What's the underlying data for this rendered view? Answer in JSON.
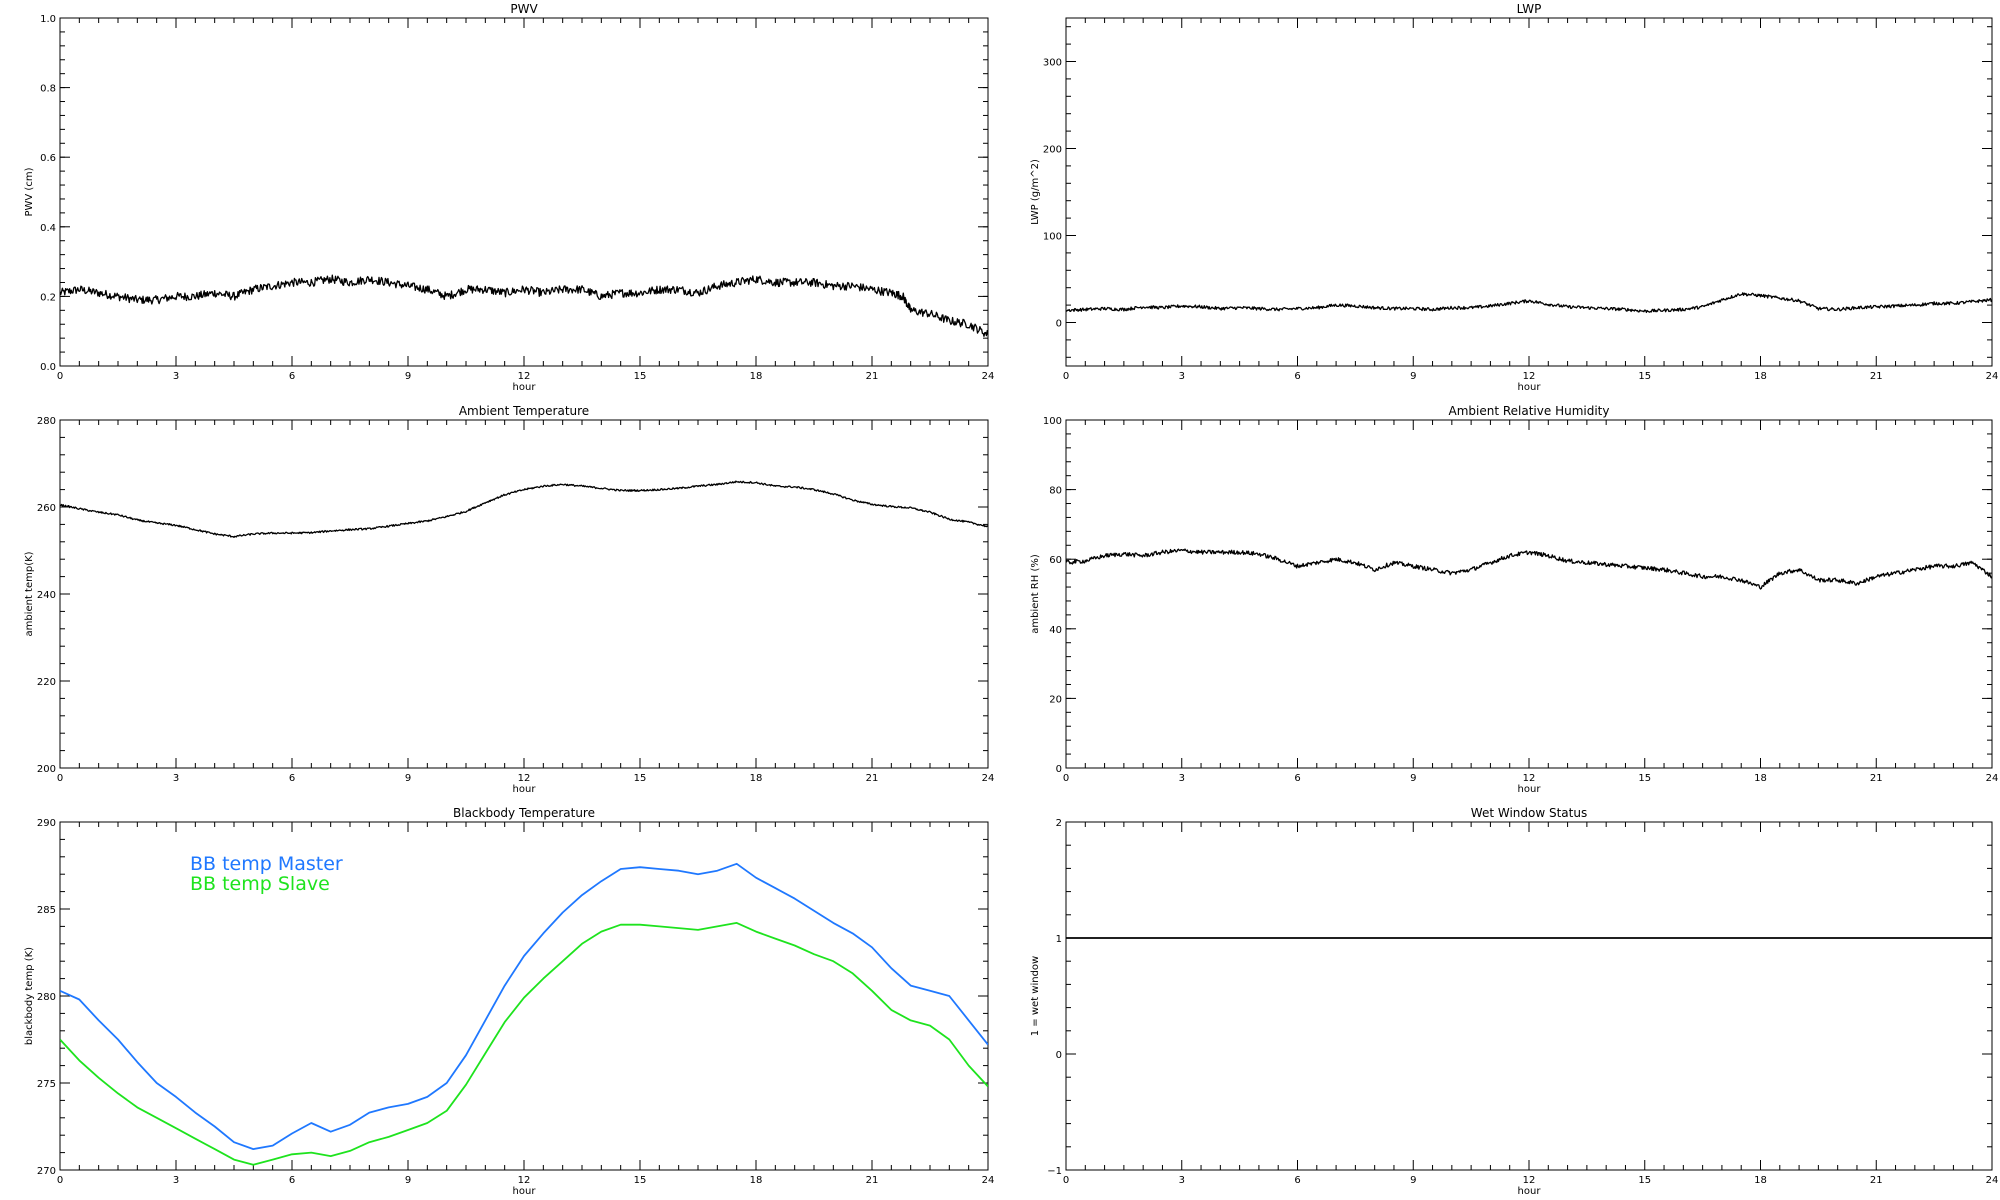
{
  "colors": {
    "background": "#ffffff",
    "axes": "#000000",
    "bb_master": "#1f78ff",
    "bb_slave": "#1ee31e"
  },
  "chart_data": [
    {
      "id": "pwv",
      "type": "line",
      "title": "PWV",
      "xlabel": "hour",
      "ylabel": "PWV (cm)",
      "xlim": [
        0,
        24
      ],
      "ylim": [
        0.0,
        1.0
      ],
      "xticks": [
        0,
        3,
        6,
        9,
        12,
        15,
        18,
        21,
        24
      ],
      "yticks": [
        "0.0",
        "0.2",
        "0.4",
        "0.6",
        "0.8",
        "1.0"
      ],
      "ytick_values": [
        0.0,
        0.2,
        0.4,
        0.6,
        0.8,
        1.0
      ],
      "noise": 0.012,
      "series": [
        {
          "color": "#000000",
          "x": [
            0,
            0.5,
            1,
            1.5,
            2,
            2.5,
            3,
            3.5,
            4,
            4.5,
            5,
            5.5,
            6,
            6.5,
            7,
            7.5,
            8,
            8.5,
            9,
            9.5,
            10,
            10.5,
            11,
            11.5,
            12,
            12.5,
            13,
            13.5,
            14,
            14.5,
            15,
            15.5,
            16,
            16.5,
            17,
            17.5,
            18,
            18.5,
            19,
            19.5,
            20,
            20.5,
            21,
            21.5,
            21.8,
            22,
            22.5,
            23,
            23.5,
            24
          ],
          "y": [
            0.21,
            0.22,
            0.21,
            0.2,
            0.19,
            0.19,
            0.2,
            0.2,
            0.21,
            0.2,
            0.22,
            0.23,
            0.24,
            0.24,
            0.25,
            0.24,
            0.25,
            0.24,
            0.23,
            0.22,
            0.2,
            0.22,
            0.22,
            0.21,
            0.22,
            0.21,
            0.22,
            0.22,
            0.2,
            0.21,
            0.21,
            0.22,
            0.22,
            0.21,
            0.23,
            0.24,
            0.25,
            0.24,
            0.24,
            0.24,
            0.23,
            0.23,
            0.22,
            0.21,
            0.2,
            0.16,
            0.15,
            0.13,
            0.12,
            0.09
          ]
        }
      ]
    },
    {
      "id": "lwp",
      "type": "line",
      "title": "LWP",
      "xlabel": "hour",
      "ylabel": "LWP (g/m^2)",
      "xlim": [
        0,
        24
      ],
      "ylim": [
        -50,
        350
      ],
      "xticks": [
        0,
        3,
        6,
        9,
        12,
        15,
        18,
        21,
        24
      ],
      "yticks": [
        "0",
        "100",
        "200",
        "300"
      ],
      "ytick_values": [
        0,
        100,
        200,
        300
      ],
      "noise": 1.8,
      "series": [
        {
          "color": "#000000",
          "x": [
            0,
            0.5,
            1,
            1.5,
            2,
            2.5,
            3,
            3.5,
            4,
            4.5,
            5,
            5.5,
            6,
            6.5,
            7,
            7.5,
            8,
            8.5,
            9,
            9.5,
            10,
            10.5,
            11,
            11.5,
            12,
            12.5,
            13,
            13.5,
            14,
            14.5,
            15,
            15.5,
            16,
            16.5,
            17,
            17.5,
            18,
            18.5,
            19,
            19.5,
            20,
            20.5,
            21,
            21.5,
            22,
            22.5,
            23,
            23.5,
            24
          ],
          "y": [
            14,
            15,
            16,
            15,
            18,
            17,
            19,
            18,
            16,
            17,
            16,
            15,
            16,
            17,
            20,
            19,
            17,
            16,
            16,
            15,
            17,
            17,
            19,
            22,
            25,
            21,
            18,
            17,
            16,
            15,
            13,
            14,
            15,
            18,
            26,
            33,
            31,
            28,
            25,
            16,
            15,
            17,
            18,
            19,
            20,
            22,
            22,
            24,
            26
          ]
        }
      ]
    },
    {
      "id": "ambient-temp",
      "type": "line",
      "title": "Ambient Temperature",
      "xlabel": "hour",
      "ylabel": "ambient temp(K)",
      "xlim": [
        0,
        24
      ],
      "ylim": [
        200,
        280
      ],
      "xticks": [
        0,
        3,
        6,
        9,
        12,
        15,
        18,
        21,
        24
      ],
      "yticks": [
        "200",
        "220",
        "240",
        "260",
        "280"
      ],
      "ytick_values": [
        200,
        220,
        240,
        260,
        280
      ],
      "noise": 0.2,
      "series": [
        {
          "color": "#000000",
          "x": [
            0,
            0.5,
            1,
            1.5,
            2,
            2.5,
            3,
            3.5,
            4,
            4.5,
            5,
            5.5,
            6,
            6.5,
            7,
            7.5,
            8,
            8.5,
            9,
            9.5,
            10,
            10.5,
            11,
            11.5,
            12,
            12.5,
            13,
            13.5,
            14,
            14.5,
            15,
            15.5,
            16,
            16.5,
            17,
            17.5,
            18,
            18.5,
            19,
            19.5,
            20,
            20.5,
            21,
            21.5,
            22,
            22.5,
            23,
            23.5,
            24
          ],
          "y": [
            260.5,
            259.6,
            258.8,
            258.2,
            257.0,
            256.3,
            255.8,
            254.8,
            253.8,
            253.2,
            253.8,
            254.0,
            254.0,
            254.1,
            254.5,
            254.8,
            255.0,
            255.6,
            256.2,
            256.8,
            257.8,
            259.0,
            261.0,
            262.8,
            264.0,
            264.8,
            265.2,
            264.8,
            264.3,
            263.8,
            263.8,
            264.0,
            264.3,
            264.8,
            265.2,
            265.8,
            265.6,
            264.8,
            264.6,
            264.0,
            263.0,
            261.6,
            260.6,
            260.1,
            259.8,
            258.8,
            257.2,
            256.5,
            255.5
          ]
        }
      ]
    },
    {
      "id": "ambient-rh",
      "type": "line",
      "title": "Ambient Relative Humidity",
      "xlabel": "hour",
      "ylabel": "ambient RH (%)",
      "xlim": [
        0,
        24
      ],
      "ylim": [
        0,
        100
      ],
      "xticks": [
        0,
        3,
        6,
        9,
        12,
        15,
        18,
        21,
        24
      ],
      "yticks": [
        "0",
        "20",
        "40",
        "60",
        "80",
        "100"
      ],
      "ytick_values": [
        0,
        20,
        40,
        60,
        80,
        100
      ],
      "noise": 0.6,
      "series": [
        {
          "color": "#000000",
          "x": [
            0,
            0.5,
            1,
            1.5,
            2,
            2.5,
            3,
            3.5,
            4,
            4.5,
            5,
            5.5,
            6,
            6.5,
            7,
            7.5,
            8,
            8.5,
            9,
            9.5,
            10,
            10.5,
            11,
            11.5,
            12,
            12.5,
            13,
            13.5,
            14,
            14.5,
            15,
            15.5,
            16,
            16.5,
            17,
            17.5,
            18,
            18.5,
            19,
            19.5,
            20,
            20.5,
            21,
            21.5,
            22,
            22.5,
            23,
            23.5,
            24
          ],
          "y": [
            59,
            59.5,
            61,
            61.5,
            61,
            62,
            62.5,
            62,
            62,
            62,
            61.5,
            60,
            58,
            59,
            60,
            59,
            57,
            59,
            58,
            57,
            56,
            57,
            59,
            61,
            62,
            61,
            59.5,
            59,
            58.5,
            58,
            57.5,
            57,
            56,
            55,
            55,
            54,
            52,
            56,
            57,
            54,
            54,
            53,
            55,
            56,
            57,
            58,
            58,
            59,
            55
          ]
        }
      ]
    },
    {
      "id": "blackbody",
      "type": "line",
      "title": "Blackbody Temperature",
      "xlabel": "hour",
      "ylabel": "blackbody temp (K)",
      "xlim": [
        0,
        24
      ],
      "ylim": [
        270,
        290
      ],
      "xticks": [
        0,
        3,
        6,
        9,
        12,
        15,
        18,
        21,
        24
      ],
      "yticks": [
        "270",
        "275",
        "280",
        "285",
        "290"
      ],
      "ytick_values": [
        270,
        275,
        280,
        285,
        290
      ],
      "noise": 0,
      "legend": [
        {
          "label": "BB temp Master",
          "color": "#1f78ff"
        },
        {
          "label": "BB temp Slave",
          "color": "#1ee31e"
        }
      ],
      "series": [
        {
          "name": "BB temp Master",
          "color": "#1f78ff",
          "x": [
            0,
            0.5,
            1,
            1.5,
            2,
            2.5,
            3,
            3.5,
            4,
            4.5,
            5,
            5.5,
            6,
            6.5,
            7,
            7.5,
            8,
            8.5,
            9,
            9.5,
            10,
            10.5,
            11,
            11.5,
            12,
            12.5,
            13,
            13.5,
            14,
            14.5,
            15,
            15.5,
            16,
            16.5,
            17,
            17.5,
            18,
            18.5,
            19,
            19.5,
            20,
            20.5,
            21,
            21.5,
            22,
            22.5,
            23,
            23.5,
            24
          ],
          "y": [
            280.3,
            279.8,
            278.6,
            277.5,
            276.2,
            275.0,
            274.2,
            273.3,
            272.5,
            271.6,
            271.2,
            271.4,
            272.1,
            272.7,
            272.2,
            272.6,
            273.3,
            273.6,
            273.8,
            274.2,
            275.0,
            276.6,
            278.6,
            280.6,
            282.3,
            283.6,
            284.8,
            285.8,
            286.6,
            287.3,
            287.4,
            287.3,
            287.2,
            287.0,
            287.2,
            287.6,
            286.8,
            286.2,
            285.6,
            284.9,
            284.2,
            283.6,
            282.8,
            281.6,
            280.6,
            280.3,
            280.0,
            278.6,
            277.2
          ]
        },
        {
          "name": "BB temp Slave",
          "color": "#1ee31e",
          "x": [
            0,
            0.5,
            1,
            1.5,
            2,
            2.5,
            3,
            3.5,
            4,
            4.5,
            5,
            5.5,
            6,
            6.5,
            7,
            7.5,
            8,
            8.5,
            9,
            9.5,
            10,
            10.5,
            11,
            11.5,
            12,
            12.5,
            13,
            13.5,
            14,
            14.5,
            15,
            15.5,
            16,
            16.5,
            17,
            17.5,
            18,
            18.5,
            19,
            19.5,
            20,
            20.5,
            21,
            21.5,
            22,
            22.5,
            23,
            23.5,
            24
          ],
          "y": [
            277.5,
            276.3,
            275.3,
            274.4,
            273.6,
            273.0,
            272.4,
            271.8,
            271.2,
            270.6,
            270.3,
            270.6,
            270.9,
            271.0,
            270.8,
            271.1,
            271.6,
            271.9,
            272.3,
            272.7,
            273.4,
            274.9,
            276.7,
            278.5,
            279.9,
            281.0,
            282.0,
            283.0,
            283.7,
            284.1,
            284.1,
            284.0,
            283.9,
            283.8,
            284.0,
            284.2,
            283.7,
            283.3,
            282.9,
            282.4,
            282.0,
            281.3,
            280.3,
            279.2,
            278.6,
            278.3,
            277.5,
            276.0,
            274.8
          ]
        }
      ]
    },
    {
      "id": "wet-window",
      "type": "line",
      "title": "Wet Window Status",
      "xlabel": "hour",
      "ylabel": "1 = wet window",
      "xlim": [
        0,
        24
      ],
      "ylim": [
        -1,
        2
      ],
      "xticks": [
        0,
        3,
        6,
        9,
        12,
        15,
        18,
        21,
        24
      ],
      "yticks": [
        "−1",
        "0",
        "1",
        "2"
      ],
      "ytick_values": [
        -1,
        0,
        1,
        2
      ],
      "noise": 0,
      "series": [
        {
          "color": "#000000",
          "x": [
            0,
            24
          ],
          "y": [
            1,
            1
          ]
        }
      ]
    }
  ]
}
